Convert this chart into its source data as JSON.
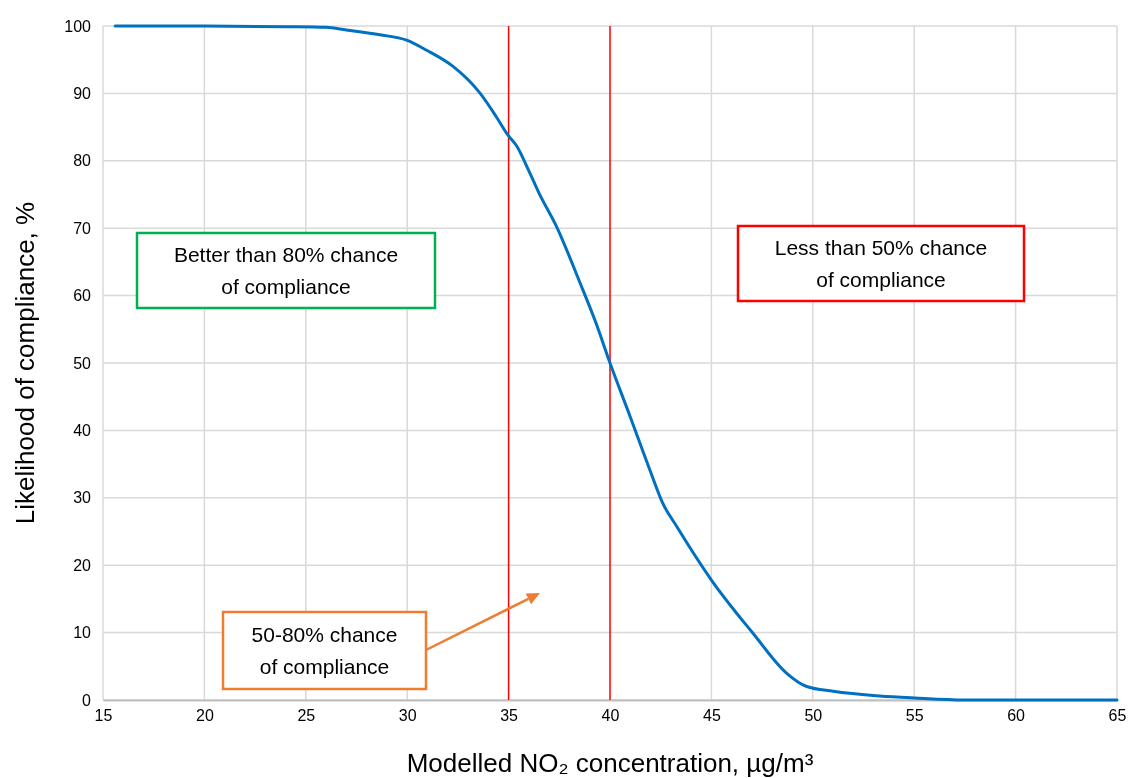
{
  "chart_data": {
    "type": "line",
    "xlabel": "Modelled NO₂ concentration, µg/m³",
    "ylabel": "Likelihood of compliance, %",
    "xlim": [
      15,
      65
    ],
    "xticks": [
      15,
      20,
      25,
      30,
      35,
      40,
      45,
      50,
      55,
      60,
      65
    ],
    "ylim": [
      0,
      100
    ],
    "yticks": [
      0,
      10,
      20,
      30,
      40,
      50,
      60,
      70,
      80,
      90,
      100
    ],
    "grid": true,
    "series": [
      {
        "color": "#0070c0",
        "x": [
          15.6,
          20,
          24,
          26,
          27,
          28.65,
          29.97,
          30.96,
          32.26,
          33.6,
          34.4,
          34.97,
          35.4,
          36,
          36.5,
          37.37,
          38.52,
          39.3,
          40,
          41,
          41.97,
          42.6,
          43.3,
          45,
          47.05,
          48.7,
          49.7,
          51,
          53.3,
          55,
          57.5,
          60,
          65
        ],
        "values": [
          100,
          100,
          99.9,
          99.8,
          99.4,
          98.7,
          97.9,
          96.4,
          94,
          90,
          86.5,
          83.8,
          82.2,
          78.5,
          75.2,
          70.2,
          61.9,
          56,
          50,
          42,
          34.1,
          29.2,
          25.7,
          17.8,
          9.9,
          4,
          2,
          1.3,
          0.6,
          0.3,
          0,
          0,
          0
        ]
      }
    ],
    "ref_lines": [
      {
        "axis": "x",
        "value": 35,
        "color": "#ff0000"
      },
      {
        "axis": "x",
        "value": 40,
        "color": "#ff0000"
      }
    ],
    "annotations": [
      "Better than 80% chance\nof compliance",
      "Less than 50% chance\nof compliance",
      "50-80% chance\nof compliance"
    ]
  }
}
